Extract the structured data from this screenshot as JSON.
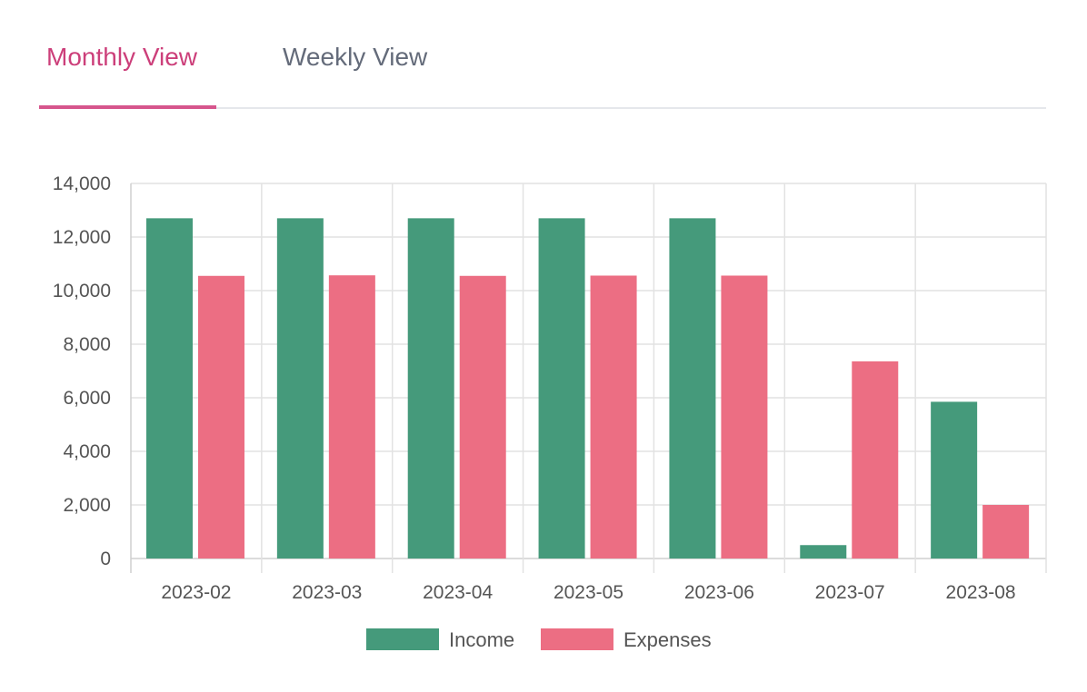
{
  "tabs": {
    "monthly_label": "Monthly View",
    "weekly_label": "Weekly View",
    "active": "monthly"
  },
  "colors": {
    "income": "#459a7b",
    "expenses": "#ec6e83",
    "active_tab": "#cc3f7a",
    "inactive_tab": "#646b7a"
  },
  "chart_data": {
    "type": "bar",
    "title": "",
    "xlabel": "",
    "ylabel": "",
    "categories": [
      "2023-02",
      "2023-03",
      "2023-04",
      "2023-05",
      "2023-06",
      "2023-07",
      "2023-08"
    ],
    "series": [
      {
        "name": "Income",
        "color": "#459a7b",
        "values": [
          12700,
          12700,
          12700,
          12700,
          12700,
          500,
          5850
        ]
      },
      {
        "name": "Expenses",
        "color": "#ec6e83",
        "values": [
          10550,
          10570,
          10550,
          10560,
          10560,
          7360,
          2000
        ]
      }
    ],
    "ylim": [
      0,
      14000
    ],
    "yticks": [
      0,
      2000,
      4000,
      6000,
      8000,
      10000,
      12000,
      14000
    ],
    "ytick_labels": [
      "0",
      "2,000",
      "4,000",
      "6,000",
      "8,000",
      "10,000",
      "12,000",
      "14,000"
    ],
    "grid": true,
    "legend_position": "bottom-center"
  }
}
